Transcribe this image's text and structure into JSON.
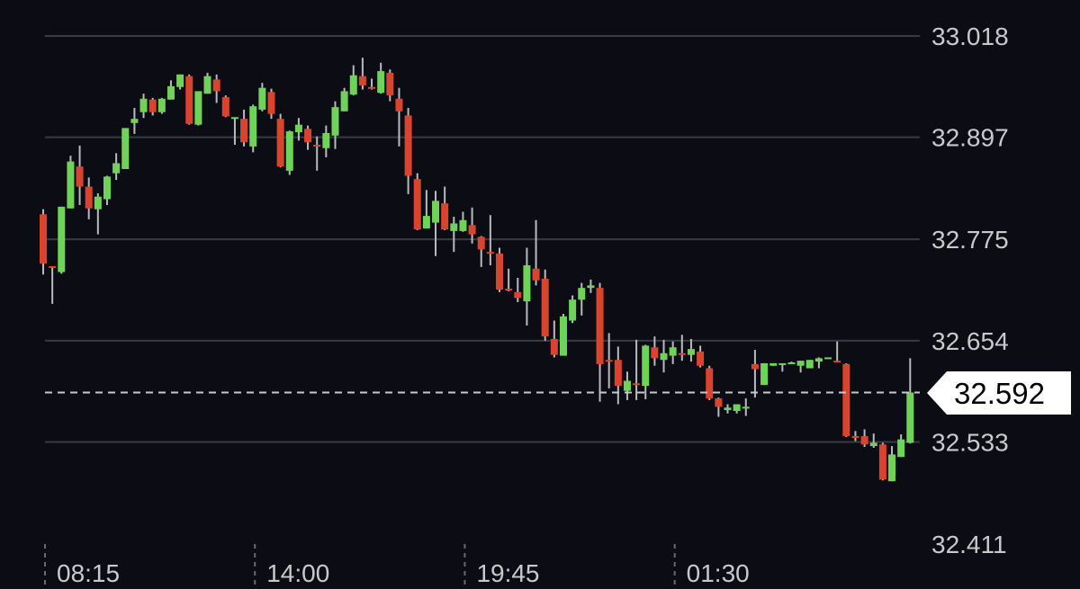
{
  "chart_data": {
    "type": "candlestick",
    "title": "",
    "interval_minutes": 15,
    "x_tick_labels": [
      "08:15",
      "14:00",
      "19:45",
      "01:30"
    ],
    "y_tick_labels": [
      "33.018",
      "32.897",
      "32.775",
      "32.654",
      "32.533",
      "32.411"
    ],
    "ylim": [
      32.411,
      33.018
    ],
    "grid": "horizontal",
    "current_price": "32.592",
    "colors": {
      "up": "#6fd35a",
      "down": "#d9442f",
      "wick": "#b9b9be",
      "background": "#0c0d14",
      "grid": "#3a3b42"
    },
    "ohlc": [
      [
        32.805,
        32.811,
        32.733,
        32.746
      ],
      [
        32.743,
        32.743,
        32.698,
        32.741
      ],
      [
        32.736,
        32.814,
        32.734,
        32.814
      ],
      [
        32.812,
        32.875,
        32.812,
        32.868
      ],
      [
        32.862,
        32.887,
        32.816,
        32.838
      ],
      [
        32.838,
        32.849,
        32.799,
        32.812
      ],
      [
        32.811,
        32.83,
        32.781,
        32.826
      ],
      [
        32.823,
        32.851,
        32.816,
        32.85
      ],
      [
        32.854,
        32.878,
        32.846,
        32.866
      ],
      [
        32.859,
        32.908,
        32.859,
        32.908
      ],
      [
        32.914,
        32.932,
        32.901,
        32.919
      ],
      [
        32.927,
        32.949,
        32.92,
        32.943
      ],
      [
        32.942,
        32.944,
        32.923,
        32.927
      ],
      [
        32.927,
        32.944,
        32.925,
        32.943
      ],
      [
        32.942,
        32.965,
        32.942,
        32.958
      ],
      [
        32.957,
        32.972,
        32.954,
        32.972
      ],
      [
        32.97,
        32.972,
        32.912,
        32.913
      ],
      [
        32.912,
        32.952,
        32.911,
        32.952
      ],
      [
        32.949,
        32.974,
        32.949,
        32.97
      ],
      [
        32.966,
        32.972,
        32.938,
        32.952
      ],
      [
        32.945,
        32.947,
        32.921,
        32.922
      ],
      [
        32.919,
        32.921,
        32.888,
        32.921
      ],
      [
        32.919,
        32.93,
        32.886,
        32.891
      ],
      [
        32.886,
        32.936,
        32.879,
        32.934
      ],
      [
        32.93,
        32.962,
        32.928,
        32.956
      ],
      [
        32.951,
        32.955,
        32.919,
        32.925
      ],
      [
        32.919,
        32.925,
        32.861,
        32.862
      ],
      [
        32.857,
        32.905,
        32.852,
        32.904
      ],
      [
        32.903,
        32.92,
        32.893,
        32.912
      ],
      [
        32.907,
        32.911,
        32.882,
        32.891
      ],
      [
        32.888,
        32.898,
        32.857,
        32.887
      ],
      [
        32.884,
        32.911,
        32.873,
        32.902
      ],
      [
        32.899,
        32.94,
        32.883,
        32.933
      ],
      [
        32.928,
        32.956,
        32.928,
        32.952
      ],
      [
        32.948,
        32.983,
        32.947,
        32.971
      ],
      [
        32.97,
        32.992,
        32.954,
        32.959
      ],
      [
        32.957,
        32.967,
        32.954,
        32.956
      ],
      [
        32.95,
        32.986,
        32.949,
        32.976
      ],
      [
        32.974,
        32.978,
        32.94,
        32.947
      ],
      [
        32.943,
        32.956,
        32.886,
        32.928
      ],
      [
        32.923,
        32.932,
        32.829,
        32.851
      ],
      [
        32.847,
        32.854,
        32.786,
        32.787
      ],
      [
        32.788,
        32.834,
        32.788,
        32.803
      ],
      [
        32.795,
        32.833,
        32.755,
        32.821
      ],
      [
        32.818,
        32.838,
        32.786,
        32.787
      ],
      [
        32.785,
        32.802,
        32.76,
        32.794
      ],
      [
        32.785,
        32.808,
        32.784,
        32.798
      ],
      [
        32.792,
        32.813,
        32.77,
        32.781
      ],
      [
        32.778,
        32.779,
        32.742,
        32.763
      ],
      [
        32.76,
        32.804,
        32.744,
        32.759
      ],
      [
        32.758,
        32.765,
        32.712,
        32.715
      ],
      [
        32.716,
        32.74,
        32.713,
        32.715
      ],
      [
        32.712,
        32.729,
        32.7,
        32.705
      ],
      [
        32.701,
        32.765,
        32.672,
        32.744
      ],
      [
        32.74,
        32.798,
        32.72,
        32.726
      ],
      [
        32.728,
        32.739,
        32.654,
        32.659
      ],
      [
        32.656,
        32.678,
        32.634,
        32.637
      ],
      [
        32.636,
        32.686,
        32.636,
        32.683
      ],
      [
        32.678,
        32.708,
        32.675,
        32.703
      ],
      [
        32.703,
        32.723,
        32.684,
        32.717
      ],
      [
        32.717,
        32.727,
        32.711,
        32.72
      ],
      [
        32.717,
        32.723,
        32.581,
        32.626
      ],
      [
        32.631,
        32.663,
        32.597,
        32.63
      ],
      [
        32.631,
        32.647,
        32.578,
        32.6
      ],
      [
        32.594,
        32.617,
        32.583,
        32.606
      ],
      [
        32.603,
        32.655,
        32.583,
        32.601
      ],
      [
        32.6,
        32.649,
        32.584,
        32.648
      ],
      [
        32.646,
        32.659,
        32.624,
        32.633
      ],
      [
        32.631,
        32.655,
        32.616,
        32.639
      ],
      [
        32.636,
        32.653,
        32.626,
        32.646
      ],
      [
        32.639,
        32.661,
        32.63,
        32.637
      ],
      [
        32.637,
        32.656,
        32.629,
        32.644
      ],
      [
        32.641,
        32.648,
        32.622,
        32.624
      ],
      [
        32.621,
        32.624,
        32.583,
        32.585
      ],
      [
        32.585,
        32.586,
        32.563,
        32.575
      ],
      [
        32.571,
        32.578,
        32.567,
        32.574
      ],
      [
        32.57,
        32.578,
        32.567,
        32.578
      ],
      [
        32.575,
        32.585,
        32.564,
        32.575
      ],
      [
        32.626,
        32.643,
        32.586,
        32.62
      ],
      [
        32.601,
        32.627,
        32.601,
        32.627
      ],
      [
        32.624,
        32.627,
        32.624,
        32.627
      ],
      [
        32.627,
        32.627,
        32.617,
        32.627
      ],
      [
        32.628,
        32.629,
        32.627,
        32.628
      ],
      [
        32.624,
        32.63,
        32.616,
        32.63
      ],
      [
        32.621,
        32.631,
        32.621,
        32.631
      ],
      [
        32.629,
        32.634,
        32.621,
        32.633
      ],
      [
        32.634,
        32.634,
        32.633,
        32.634
      ],
      [
        32.63,
        32.653,
        32.628,
        32.629
      ],
      [
        32.626,
        32.627,
        32.539,
        32.54
      ],
      [
        32.54,
        32.546,
        32.534,
        32.539
      ],
      [
        32.54,
        32.548,
        32.527,
        32.53
      ],
      [
        32.528,
        32.543,
        32.526,
        32.532
      ],
      [
        32.53,
        32.532,
        32.487,
        32.488
      ],
      [
        32.486,
        32.528,
        32.486,
        32.518
      ],
      [
        32.515,
        32.542,
        32.515,
        32.536
      ],
      [
        32.532,
        32.633,
        32.531,
        32.592
      ]
    ]
  }
}
